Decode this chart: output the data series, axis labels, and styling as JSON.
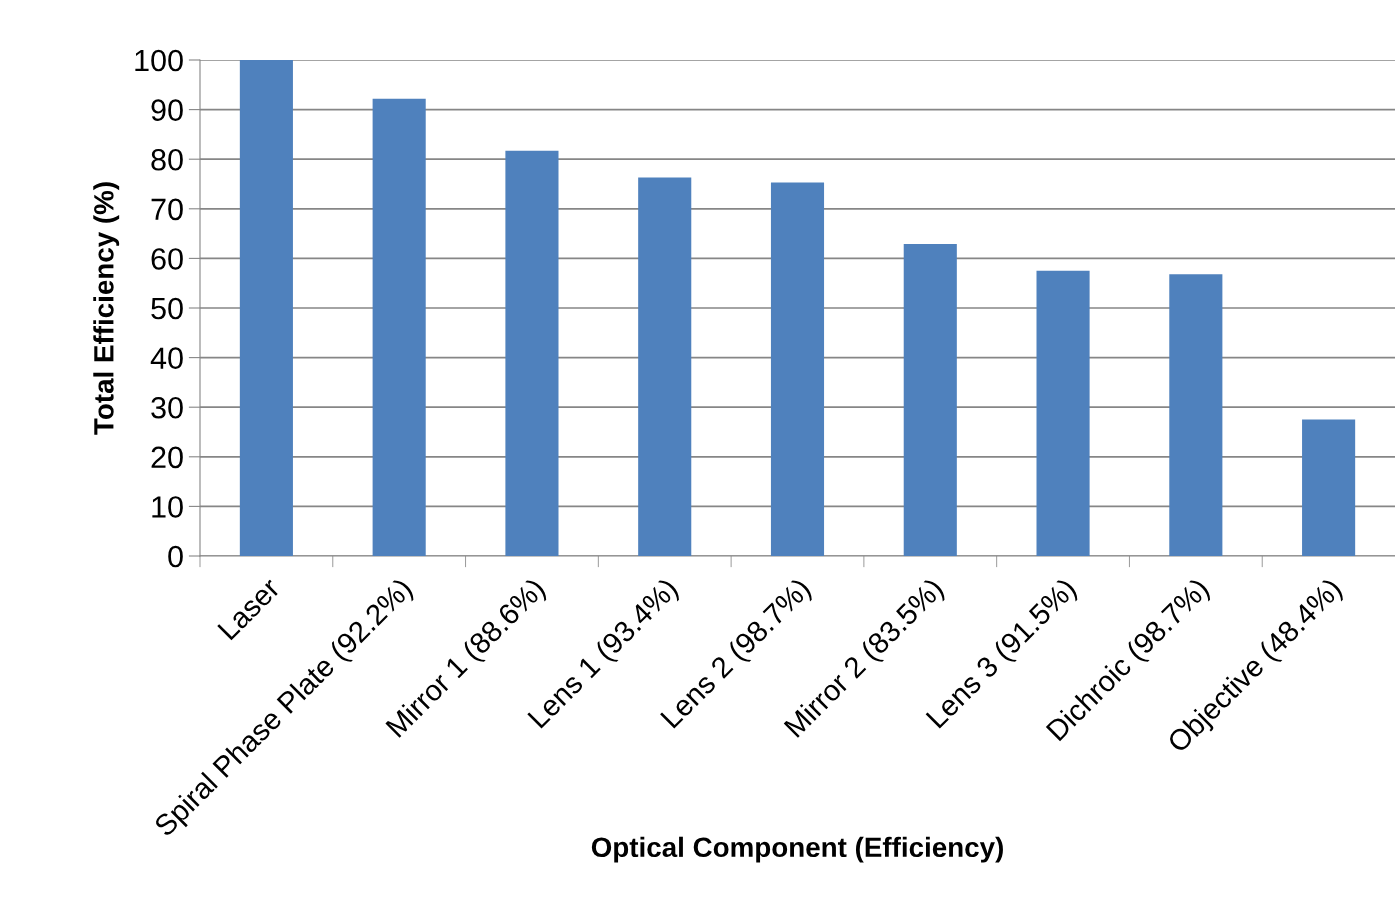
{
  "chart_data": {
    "type": "bar",
    "xlabel": "Optical Component (Efficiency)",
    "ylabel": "Total Efficiency (%)",
    "categories": [
      "Laser",
      "Spiral Phase Plate (92.2%)",
      "Mirror 1 (88.6%)",
      "Lens 1 (93.4%)",
      "Lens 2 (98.7%)",
      "Mirror 2 (83.5%)",
      "Lens 3 (91.5%)",
      "Dichroic (98.7%)",
      "Objective (48.4%)"
    ],
    "values": [
      100,
      92.2,
      81.7,
      76.3,
      75.3,
      62.9,
      57.5,
      56.8,
      27.5
    ],
    "color": "#4f81bd",
    "ylim": [
      0,
      100
    ],
    "yticks": [
      0,
      10,
      20,
      30,
      40,
      50,
      60,
      70,
      80,
      90,
      100
    ],
    "grid": "y",
    "legend": false
  }
}
